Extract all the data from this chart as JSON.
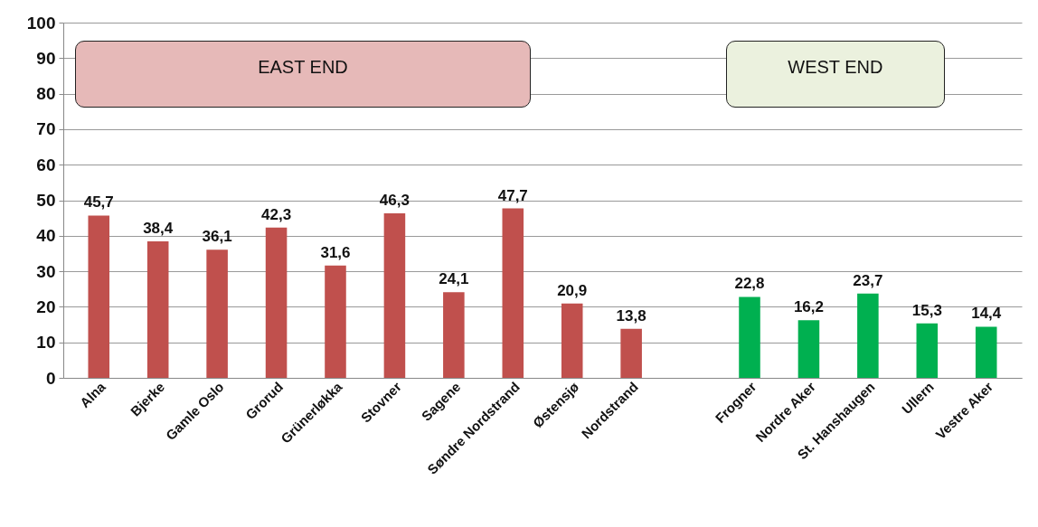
{
  "chart_data": {
    "type": "bar",
    "categories": [
      "Alna",
      "Bjerke",
      "Gamle Oslo",
      "Grorud",
      "Grünerløkka",
      "Stovner",
      "Sagene",
      "Søndre Nordstrand",
      "Østensjø",
      "Nordstrand",
      null,
      "Frogner",
      "Nordre Aker",
      "St. Hanshaugen",
      "Ullern",
      "Vestre Aker"
    ],
    "values": [
      45.7,
      38.4,
      36.1,
      42.3,
      31.6,
      46.3,
      24.1,
      47.7,
      20.9,
      13.8,
      null,
      22.8,
      16.2,
      23.7,
      15.3,
      14.4
    ],
    "colors": [
      "#c0504d",
      "#c0504d",
      "#c0504d",
      "#c0504d",
      "#c0504d",
      "#c0504d",
      "#c0504d",
      "#c0504d",
      "#c0504d",
      "#c0504d",
      "#c0504d",
      "#00b050",
      "#00b050",
      "#00b050",
      "#00b050",
      "#00b050"
    ],
    "value_labels": [
      "45,7",
      "38,4",
      "36,1",
      "42,3",
      "31,6",
      "46,3",
      "24,1",
      "47,7",
      "20,9",
      "13,8",
      null,
      "22,8",
      "16,2",
      "23,7",
      "15,3",
      "14,4"
    ],
    "ylim": [
      0,
      100
    ],
    "yticks": [
      0,
      10,
      20,
      30,
      40,
      50,
      60,
      70,
      80,
      90,
      100
    ],
    "grid": "y",
    "annotations": [
      "EAST END",
      "WEST END"
    ]
  }
}
